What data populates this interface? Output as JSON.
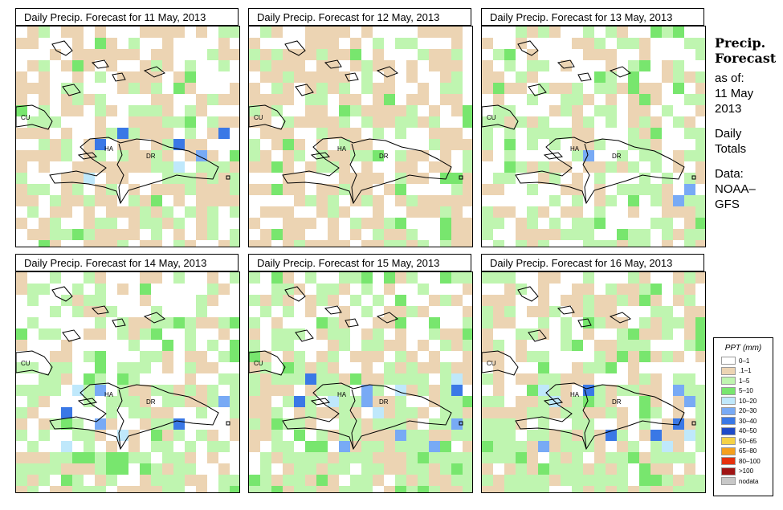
{
  "panels": [
    {
      "title": "Daily Precip. Forecast for  11 May, 2013",
      "seed": 11,
      "green": 0.25,
      "tan": 0.4,
      "blue": 0.05
    },
    {
      "title": "Daily Precip. Forecast for  12 May, 2013",
      "seed": 12,
      "green": 0.22,
      "tan": 0.48,
      "blue": 0.0
    },
    {
      "title": "Daily Precip. Forecast for  13 May, 2013",
      "seed": 13,
      "green": 0.35,
      "tan": 0.28,
      "blue": 0.03
    },
    {
      "title": "Daily Precip. Forecast for  14 May, 2013",
      "seed": 14,
      "green": 0.42,
      "tan": 0.22,
      "blue": 0.08
    },
    {
      "title": "Daily Precip. Forecast for  15 May, 2013",
      "seed": 15,
      "green": 0.45,
      "tan": 0.3,
      "blue": 0.12
    },
    {
      "title": "Daily Precip. Forecast for  16 May, 2013",
      "seed": 16,
      "green": 0.4,
      "tan": 0.32,
      "blue": 0.14
    }
  ],
  "map_labels": {
    "cuba": "CU",
    "haiti": "HA",
    "dominican_republic": "DR"
  },
  "side": {
    "title_1": "Precip.",
    "title_2": "Forecast",
    "as_of": "as of:",
    "date_1": "11 May",
    "date_2": "2013",
    "totals_1": "Daily",
    "totals_2": "Totals",
    "data_1": "Data:",
    "data_2": "NOAA–",
    "data_3": "GFS"
  },
  "legend": {
    "title": "PPT (mm)",
    "entries": [
      {
        "label": "0–1",
        "color": "#ffffff"
      },
      {
        "label": ".1–1",
        "color": "#ecd4b3"
      },
      {
        "label": "1–5",
        "color": "#bff5b0"
      },
      {
        "label": "5–10",
        "color": "#78e66e"
      },
      {
        "label": "10–20",
        "color": "#bfe8fb"
      },
      {
        "label": "20–30",
        "color": "#78aaf5"
      },
      {
        "label": "30–40",
        "color": "#3a78e6"
      },
      {
        "label": "40–50",
        "color": "#1e4bc8"
      },
      {
        "label": "50–65",
        "color": "#f5d246"
      },
      {
        "label": "65–80",
        "color": "#f5a01e"
      },
      {
        "label": "80–100",
        "color": "#e6320f"
      },
      {
        "label": ">100",
        "color": "#a01414"
      },
      {
        "label": "nodata",
        "color": "#c8c8c8"
      }
    ]
  }
}
